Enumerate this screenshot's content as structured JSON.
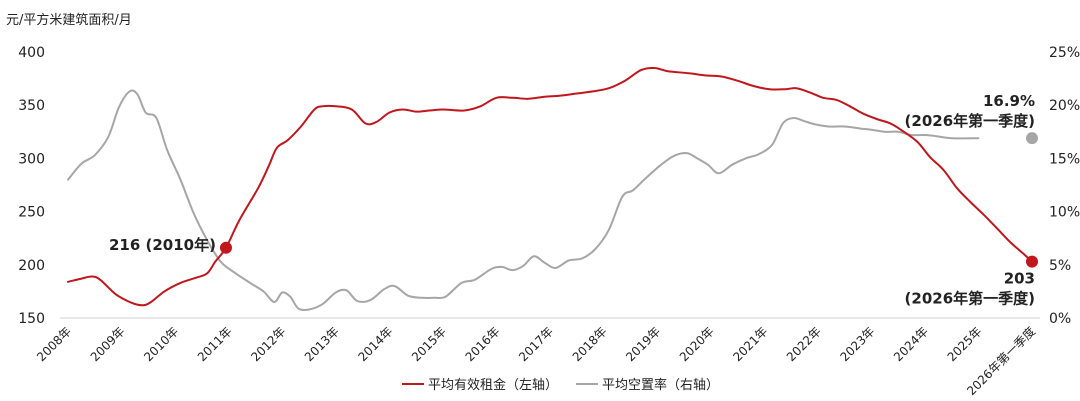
{
  "chart_data": {
    "type": "line",
    "left_axis_unit": "元/平方米建筑面积/月",
    "left_ticks": [
      400,
      350,
      300,
      250,
      200,
      150
    ],
    "right_ticks": [
      "25%",
      "20%",
      "15%",
      "10%",
      "5%",
      "0%"
    ],
    "ylim_left": [
      150,
      400
    ],
    "ylim_right": [
      0,
      25
    ],
    "x_labels": [
      "2008年",
      "2009年",
      "2010年",
      "2011年",
      "2012年",
      "2013年",
      "2014年",
      "2015年",
      "2016年",
      "2017年",
      "2018年",
      "2019年",
      "2020年",
      "2021年",
      "2022年",
      "2023年",
      "2024年",
      "2025年",
      "2026年第一季度"
    ],
    "series": [
      {
        "name": "平均有效租金（左轴）",
        "axis": "left",
        "color": "#c0161c",
        "points": [
          [
            2008.0,
            184
          ],
          [
            2008.25,
            187
          ],
          [
            2008.45,
            189
          ],
          [
            2008.6,
            186
          ],
          [
            2008.9,
            172
          ],
          [
            2009.2,
            164
          ],
          [
            2009.4,
            162
          ],
          [
            2009.55,
            165
          ],
          [
            2009.8,
            175
          ],
          [
            2010.1,
            183
          ],
          [
            2010.4,
            188
          ],
          [
            2010.6,
            192
          ],
          [
            2010.75,
            203
          ],
          [
            2010.95,
            216
          ],
          [
            2011.2,
            242
          ],
          [
            2011.55,
            272
          ],
          [
            2011.75,
            293
          ],
          [
            2011.9,
            310
          ],
          [
            2012.1,
            317
          ],
          [
            2012.35,
            330
          ],
          [
            2012.6,
            346
          ],
          [
            2012.75,
            349
          ],
          [
            2013.0,
            349
          ],
          [
            2013.3,
            346
          ],
          [
            2013.55,
            333
          ],
          [
            2013.75,
            334
          ],
          [
            2014.0,
            343
          ],
          [
            2014.25,
            346
          ],
          [
            2014.5,
            344
          ],
          [
            2014.75,
            345
          ],
          [
            2015.0,
            346
          ],
          [
            2015.4,
            345
          ],
          [
            2015.7,
            349
          ],
          [
            2016.0,
            357
          ],
          [
            2016.3,
            357
          ],
          [
            2016.6,
            356
          ],
          [
            2016.9,
            358
          ],
          [
            2017.2,
            359
          ],
          [
            2017.5,
            361
          ],
          [
            2017.8,
            363
          ],
          [
            2018.1,
            366
          ],
          [
            2018.4,
            373
          ],
          [
            2018.7,
            383
          ],
          [
            2018.95,
            385
          ],
          [
            2019.2,
            382
          ],
          [
            2019.6,
            380
          ],
          [
            2019.9,
            378
          ],
          [
            2020.2,
            377
          ],
          [
            2020.5,
            373
          ],
          [
            2020.8,
            368
          ],
          [
            2021.1,
            365
          ],
          [
            2021.4,
            365
          ],
          [
            2021.6,
            366
          ],
          [
            2021.85,
            362
          ],
          [
            2022.1,
            357
          ],
          [
            2022.35,
            355
          ],
          [
            2022.6,
            349
          ],
          [
            2022.85,
            342
          ],
          [
            2023.1,
            337
          ],
          [
            2023.35,
            333
          ],
          [
            2023.55,
            327
          ],
          [
            2023.85,
            316
          ],
          [
            2024.1,
            301
          ],
          [
            2024.35,
            289
          ],
          [
            2024.6,
            272
          ],
          [
            2024.85,
            259
          ],
          [
            2025.1,
            247
          ],
          [
            2025.35,
            234
          ],
          [
            2025.6,
            221
          ],
          [
            2025.85,
            210
          ],
          [
            2026.0,
            203
          ]
        ]
      },
      {
        "name": "平均空置率（右轴）",
        "axis": "right",
        "color": "#a6a6a6",
        "points": [
          [
            2008.0,
            13.0
          ],
          [
            2008.25,
            14.5
          ],
          [
            2008.5,
            15.3
          ],
          [
            2008.75,
            17.0
          ],
          [
            2008.95,
            19.8
          ],
          [
            2009.15,
            21.3
          ],
          [
            2009.3,
            21.0
          ],
          [
            2009.45,
            19.3
          ],
          [
            2009.65,
            18.8
          ],
          [
            2009.85,
            15.8
          ],
          [
            2010.1,
            13.0
          ],
          [
            2010.35,
            9.8
          ],
          [
            2010.6,
            7.3
          ],
          [
            2010.85,
            5.3
          ],
          [
            2011.1,
            4.3
          ],
          [
            2011.4,
            3.3
          ],
          [
            2011.65,
            2.5
          ],
          [
            2011.85,
            1.5
          ],
          [
            2012.0,
            2.4
          ],
          [
            2012.15,
            2.0
          ],
          [
            2012.3,
            0.9
          ],
          [
            2012.5,
            0.8
          ],
          [
            2012.75,
            1.3
          ],
          [
            2013.0,
            2.4
          ],
          [
            2013.2,
            2.6
          ],
          [
            2013.4,
            1.6
          ],
          [
            2013.65,
            1.7
          ],
          [
            2013.9,
            2.7
          ],
          [
            2014.1,
            3.0
          ],
          [
            2014.35,
            2.1
          ],
          [
            2014.6,
            1.9
          ],
          [
            2014.85,
            1.9
          ],
          [
            2015.05,
            2.0
          ],
          [
            2015.35,
            3.3
          ],
          [
            2015.6,
            3.6
          ],
          [
            2015.9,
            4.6
          ],
          [
            2016.1,
            4.8
          ],
          [
            2016.3,
            4.5
          ],
          [
            2016.5,
            4.9
          ],
          [
            2016.7,
            5.8
          ],
          [
            2016.9,
            5.2
          ],
          [
            2017.1,
            4.7
          ],
          [
            2017.35,
            5.4
          ],
          [
            2017.6,
            5.6
          ],
          [
            2017.85,
            6.5
          ],
          [
            2018.1,
            8.3
          ],
          [
            2018.35,
            11.4
          ],
          [
            2018.55,
            12.0
          ],
          [
            2018.8,
            13.2
          ],
          [
            2019.05,
            14.3
          ],
          [
            2019.3,
            15.2
          ],
          [
            2019.55,
            15.5
          ],
          [
            2019.75,
            15.0
          ],
          [
            2019.95,
            14.4
          ],
          [
            2020.15,
            13.6
          ],
          [
            2020.4,
            14.4
          ],
          [
            2020.65,
            15.0
          ],
          [
            2020.9,
            15.4
          ],
          [
            2021.15,
            16.3
          ],
          [
            2021.35,
            18.3
          ],
          [
            2021.55,
            18.8
          ],
          [
            2021.75,
            18.5
          ],
          [
            2021.95,
            18.2
          ],
          [
            2022.2,
            18.0
          ],
          [
            2022.5,
            18.0
          ],
          [
            2022.8,
            17.8
          ],
          [
            2023.0,
            17.7
          ],
          [
            2023.25,
            17.5
          ],
          [
            2023.5,
            17.5
          ],
          [
            2023.75,
            17.2
          ],
          [
            2024.0,
            17.2
          ],
          [
            2024.2,
            17.1
          ],
          [
            2024.5,
            16.9
          ],
          [
            2025.0,
            16.9
          ]
        ]
      }
    ],
    "annotations": [
      {
        "series": 0,
        "x": 2010.95,
        "y": 216,
        "lines": [
          "216 (2010年)"
        ],
        "anchor": "left"
      },
      {
        "series": 0,
        "x": 2026.0,
        "y": 203,
        "lines": [
          "203",
          "(2026年第一季度)"
        ],
        "anchor": "below"
      },
      {
        "series": 1,
        "x": 2026.0,
        "y": 16.9,
        "lines": [
          "16.9%",
          "(2026年第一季度)"
        ],
        "anchor": "above"
      }
    ]
  }
}
